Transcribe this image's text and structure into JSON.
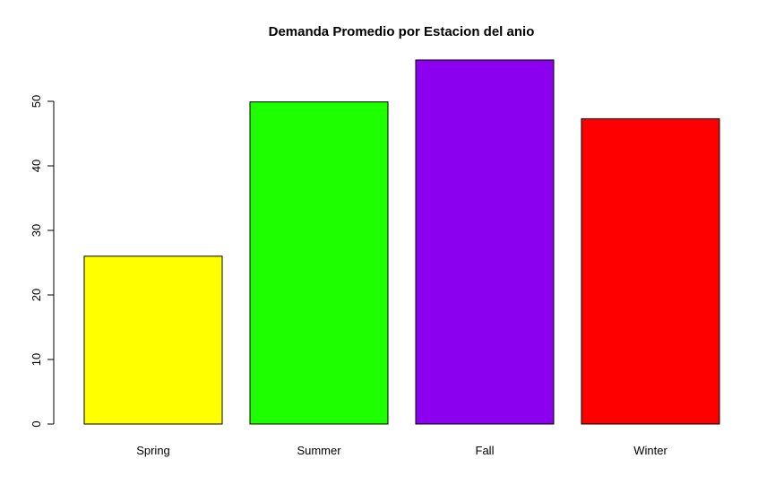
{
  "chart_data": {
    "type": "bar",
    "title": "Demanda Promedio por Estacion del anio",
    "xlabel": "",
    "ylabel": "",
    "categories": [
      "Spring",
      "Summer",
      "Fall",
      "Winter"
    ],
    "values": [
      26.0,
      49.9,
      56.4,
      47.3
    ],
    "colors": [
      "#FFFF00",
      "#1EFF00",
      "#8B00EE",
      "#FF0000"
    ],
    "ylim": [
      0,
      56.4
    ],
    "yticks": [
      0,
      10,
      20,
      30,
      40,
      50
    ],
    "ytick_labels": [
      "0",
      "10",
      "20",
      "30",
      "40",
      "50"
    ],
    "grid": false,
    "legend": "none"
  }
}
